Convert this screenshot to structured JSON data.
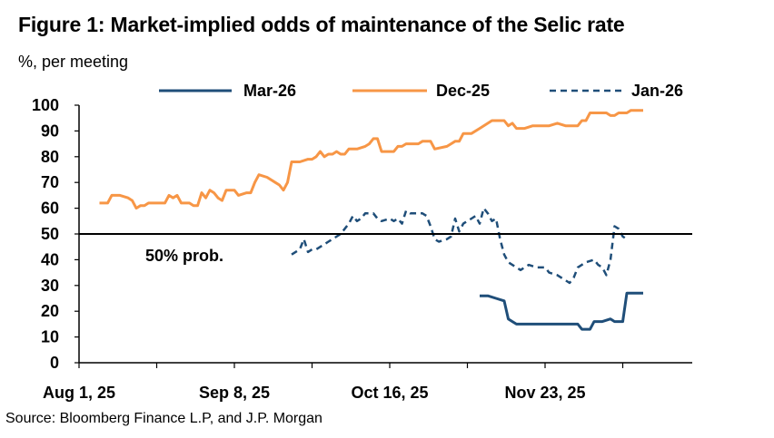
{
  "header": {
    "title": "Figure 1: Market-implied odds of maintenance of the Selic rate",
    "subtitle": "%, per meeting"
  },
  "footer": {
    "source": "Source: Bloomberg Finance L.P, and J.P. Morgan"
  },
  "chart_data": {
    "type": "line",
    "title": "Figure 1: Market-implied odds of maintenance of the Selic rate",
    "ylabel": "%, per meeting",
    "xlabel": "",
    "x_unit": "days since Aug 1, 25",
    "xlim": [
      -2,
      148
    ],
    "ylim": [
      0,
      100
    ],
    "yticks": [
      0,
      10,
      20,
      30,
      40,
      50,
      60,
      70,
      80,
      90,
      100
    ],
    "xticks": [
      {
        "x": 0,
        "label": "Aug 1, 25"
      },
      {
        "x": 38,
        "label": "Sep 8, 25"
      },
      {
        "x": 76,
        "label": "Oct 16, 25"
      },
      {
        "x": 114,
        "label": "Nov 23, 25"
      }
    ],
    "legend_position": "top",
    "reference_line": {
      "y": 50,
      "label": "50% prob."
    },
    "colors": {
      "mar26": "#1f4e79",
      "dec25": "#f79646",
      "jan26": "#1f4e79",
      "axis": "#000000"
    },
    "series": [
      {
        "key": "mar26",
        "name": "Mar-26",
        "style": "solid",
        "points": [
          [
            98,
            26
          ],
          [
            100,
            26
          ],
          [
            102,
            25
          ],
          [
            104,
            24
          ],
          [
            105,
            17
          ],
          [
            106,
            16
          ],
          [
            107,
            15
          ],
          [
            110,
            15
          ],
          [
            115,
            15
          ],
          [
            120,
            15
          ],
          [
            122,
            15
          ],
          [
            123,
            13
          ],
          [
            125,
            13
          ],
          [
            126,
            16
          ],
          [
            128,
            16
          ],
          [
            130,
            17
          ],
          [
            131,
            16
          ],
          [
            133,
            16
          ],
          [
            134,
            27
          ],
          [
            138,
            27
          ]
        ]
      },
      {
        "key": "dec25",
        "name": "Dec-25",
        "style": "solid",
        "points": [
          [
            5,
            62
          ],
          [
            7,
            62
          ],
          [
            8,
            65
          ],
          [
            10,
            65
          ],
          [
            12,
            64
          ],
          [
            13,
            63
          ],
          [
            14,
            60
          ],
          [
            15,
            61
          ],
          [
            16,
            61
          ],
          [
            17,
            62
          ],
          [
            19,
            62
          ],
          [
            21,
            62
          ],
          [
            22,
            65
          ],
          [
            23,
            64
          ],
          [
            24,
            65
          ],
          [
            25,
            62
          ],
          [
            27,
            62
          ],
          [
            28,
            61
          ],
          [
            29,
            61
          ],
          [
            30,
            66
          ],
          [
            31,
            64
          ],
          [
            32,
            67
          ],
          [
            33,
            66
          ],
          [
            34,
            64
          ],
          [
            35,
            63
          ],
          [
            36,
            67
          ],
          [
            38,
            67
          ],
          [
            39,
            65
          ],
          [
            41,
            66
          ],
          [
            42,
            66
          ],
          [
            43,
            70
          ],
          [
            44,
            73
          ],
          [
            46,
            72
          ],
          [
            48,
            70
          ],
          [
            49,
            69
          ],
          [
            50,
            67
          ],
          [
            51,
            70
          ],
          [
            52,
            78
          ],
          [
            54,
            78
          ],
          [
            56,
            79
          ],
          [
            57,
            79
          ],
          [
            58,
            80
          ],
          [
            59,
            82
          ],
          [
            60,
            80
          ],
          [
            61,
            81
          ],
          [
            62,
            81
          ],
          [
            63,
            82
          ],
          [
            64,
            81
          ],
          [
            65,
            81
          ],
          [
            66,
            83
          ],
          [
            68,
            83
          ],
          [
            70,
            84
          ],
          [
            71,
            85
          ],
          [
            72,
            87
          ],
          [
            73,
            87
          ],
          [
            74,
            82
          ],
          [
            76,
            82
          ],
          [
            77,
            82
          ],
          [
            78,
            84
          ],
          [
            79,
            84
          ],
          [
            80,
            85
          ],
          [
            83,
            85
          ],
          [
            84,
            86
          ],
          [
            86,
            86
          ],
          [
            87,
            83
          ],
          [
            90,
            84
          ],
          [
            91,
            85
          ],
          [
            92,
            86
          ],
          [
            93,
            86
          ],
          [
            94,
            89
          ],
          [
            96,
            89
          ],
          [
            98,
            91
          ],
          [
            100,
            93
          ],
          [
            101,
            94
          ],
          [
            104,
            94
          ],
          [
            105,
            92
          ],
          [
            106,
            93
          ],
          [
            107,
            91
          ],
          [
            109,
            91
          ],
          [
            111,
            92
          ],
          [
            113,
            92
          ],
          [
            115,
            92
          ],
          [
            117,
            93
          ],
          [
            119,
            92
          ],
          [
            122,
            92
          ],
          [
            123,
            94
          ],
          [
            124,
            94
          ],
          [
            125,
            97
          ],
          [
            127,
            97
          ],
          [
            129,
            97
          ],
          [
            130,
            96
          ],
          [
            131,
            96
          ],
          [
            132,
            97
          ],
          [
            134,
            97
          ],
          [
            135,
            98
          ],
          [
            138,
            98
          ]
        ]
      },
      {
        "key": "jan26",
        "name": "Jan-26",
        "style": "dashed",
        "points": [
          [
            52,
            42
          ],
          [
            54,
            44
          ],
          [
            55,
            48
          ],
          [
            56,
            43
          ],
          [
            57,
            44
          ],
          [
            58,
            44
          ],
          [
            60,
            46
          ],
          [
            61,
            47
          ],
          [
            62,
            48
          ],
          [
            64,
            50
          ],
          [
            65,
            52
          ],
          [
            66,
            54
          ],
          [
            67,
            57
          ],
          [
            68,
            55
          ],
          [
            69,
            56
          ],
          [
            70,
            58
          ],
          [
            71,
            58
          ],
          [
            72,
            58
          ],
          [
            73,
            56
          ],
          [
            74,
            55
          ],
          [
            76,
            56
          ],
          [
            77,
            55
          ],
          [
            78,
            56
          ],
          [
            79,
            54
          ],
          [
            80,
            59
          ],
          [
            81,
            58
          ],
          [
            82,
            58
          ],
          [
            84,
            58
          ],
          [
            85,
            57
          ],
          [
            86,
            53
          ],
          [
            87,
            48
          ],
          [
            88,
            47
          ],
          [
            90,
            48
          ],
          [
            91,
            49
          ],
          [
            92,
            56
          ],
          [
            93,
            51
          ],
          [
            94,
            54
          ],
          [
            96,
            56
          ],
          [
            97,
            57
          ],
          [
            98,
            54
          ],
          [
            99,
            60
          ],
          [
            100,
            58
          ],
          [
            101,
            55
          ],
          [
            102,
            56
          ],
          [
            103,
            48
          ],
          [
            104,
            42
          ],
          [
            105,
            39
          ],
          [
            106,
            38
          ],
          [
            107,
            37
          ],
          [
            108,
            36
          ],
          [
            109,
            37
          ],
          [
            110,
            38
          ],
          [
            112,
            37
          ],
          [
            114,
            37
          ],
          [
            115,
            35
          ],
          [
            117,
            34
          ],
          [
            118,
            33
          ],
          [
            119,
            32
          ],
          [
            120,
            31
          ],
          [
            121,
            33
          ],
          [
            122,
            37
          ],
          [
            124,
            39
          ],
          [
            126,
            40
          ],
          [
            127,
            38
          ],
          [
            128,
            37
          ],
          [
            129,
            34
          ],
          [
            130,
            40
          ],
          [
            131,
            53
          ],
          [
            132,
            52
          ],
          [
            133,
            49
          ],
          [
            134,
            48
          ]
        ]
      }
    ]
  }
}
